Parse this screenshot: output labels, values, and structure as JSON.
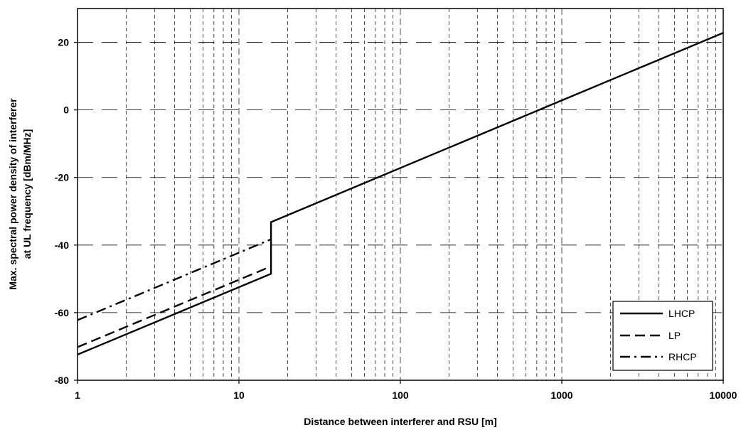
{
  "chart_data": {
    "type": "line",
    "xlabel": "Distance between interferer and  RSU [m]",
    "ylabel_lines": [
      "Max. spectral power density of interferer",
      "at UL frequency [dBm/MHz]"
    ],
    "x_scale": "log",
    "xlim": [
      1,
      10000
    ],
    "ylim": [
      -80,
      30
    ],
    "x_ticks": [
      1,
      10,
      100,
      1000,
      10000
    ],
    "x_tick_labels": [
      "1",
      "10",
      "100",
      "1000",
      "10000"
    ],
    "y_ticks": [
      -80,
      -60,
      -40,
      -20,
      0,
      20
    ],
    "y_tick_labels": [
      "-80",
      "-60",
      "-40",
      "-20",
      "0",
      "20"
    ],
    "grid": true,
    "legend_position": "bottom-right",
    "series": [
      {
        "name": "LHCP",
        "style": "solid",
        "x": [
          1,
          15.8,
          15.8,
          10000
        ],
        "y": [
          -72.4,
          -48.5,
          -33.2,
          22.8
        ]
      },
      {
        "name": "LP",
        "style": "dash",
        "x": [
          1,
          15.8
        ],
        "y": [
          -70.2,
          -46.3
        ]
      },
      {
        "name": "RHCP",
        "style": "dash-dot",
        "x": [
          1,
          15.8
        ],
        "y": [
          -62.2,
          -38.3
        ]
      }
    ],
    "colors": {
      "line": "#000000",
      "grid": "#000000",
      "background": "#ffffff"
    }
  }
}
